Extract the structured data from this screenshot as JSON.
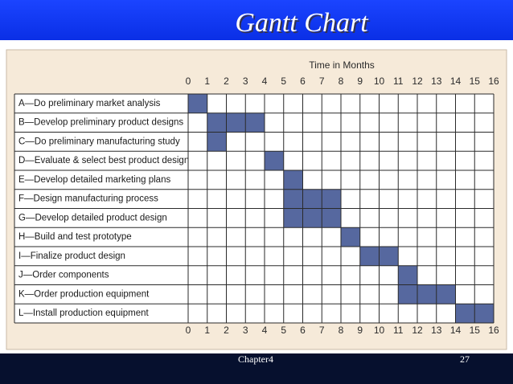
{
  "title": "Gantt Chart",
  "footer": {
    "chapter": "Chapter4",
    "page": "27"
  },
  "chart_data": {
    "type": "gantt",
    "axis_label": "Time in Months",
    "categories": [
      "A—Do preliminary market analysis",
      "B—Develop preliminary product designs",
      "C—Do preliminary manufacturing study",
      "D—Evaluate & select best product design",
      "E—Develop detailed marketing plans",
      "F—Design manufacturing process",
      "G—Develop detailed product design",
      "H—Build and test prototype",
      "I—Finalize product design",
      "J—Order components",
      "K—Order production equipment",
      "L—Install production equipment"
    ],
    "start": [
      0,
      1,
      1,
      4,
      5,
      5,
      5,
      8,
      9,
      11,
      11,
      14
    ],
    "end": [
      1,
      4,
      2,
      5,
      6,
      8,
      8,
      9,
      11,
      12,
      14,
      16
    ],
    "color": "#56689f",
    "xlim": [
      0,
      16
    ],
    "xticks": [
      0,
      1,
      2,
      3,
      4,
      5,
      6,
      7,
      8,
      9,
      10,
      11,
      12,
      13,
      14,
      15,
      16
    ],
    "grid": true
  }
}
